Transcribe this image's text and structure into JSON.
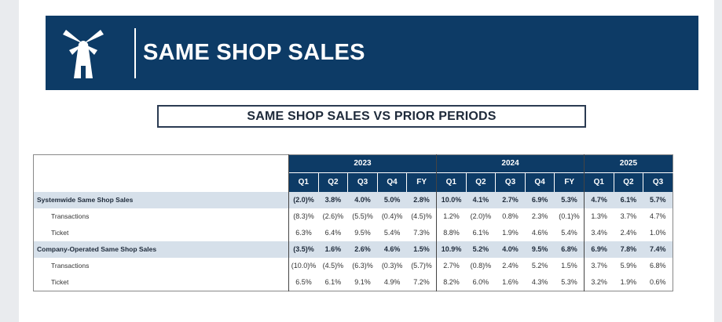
{
  "header": {
    "title": "SAME SHOP SALES",
    "logo_icon": "windmill-icon"
  },
  "subtitle": "SAME SHOP SALES VS PRIOR PERIODS",
  "colors": {
    "navy": "#0d3b66",
    "row_shade": "#d6e0ea"
  },
  "table": {
    "years": [
      {
        "label": "2023",
        "span": 5
      },
      {
        "label": "2024",
        "span": 5
      },
      {
        "label": "2025",
        "span": 3
      }
    ],
    "periods": [
      "Q1",
      "Q2",
      "Q3",
      "Q4",
      "FY",
      "Q1",
      "Q2",
      "Q3",
      "Q4",
      "FY",
      "Q1",
      "Q2",
      "Q3"
    ],
    "rows": [
      {
        "label": "Systemwide Same Shop Sales",
        "shaded": true,
        "values": [
          "(2.0)%",
          "3.8%",
          "4.0%",
          "5.0%",
          "2.8%",
          "10.0%",
          "4.1%",
          "2.7%",
          "6.9%",
          "5.3%",
          "4.7%",
          "6.1%",
          "5.7%"
        ]
      },
      {
        "label": "Transactions",
        "shaded": false,
        "values": [
          "(8.3)%",
          "(2.6)%",
          "(5.5)%",
          "(0.4)%",
          "(4.5)%",
          "1.2%",
          "(2.0)%",
          "0.8%",
          "2.3%",
          "(0.1)%",
          "1.3%",
          "3.7%",
          "4.7%"
        ]
      },
      {
        "label": "Ticket",
        "shaded": false,
        "values": [
          "6.3%",
          "6.4%",
          "9.5%",
          "5.4%",
          "7.3%",
          "8.8%",
          "6.1%",
          "1.9%",
          "4.6%",
          "5.4%",
          "3.4%",
          "2.4%",
          "1.0%"
        ]
      },
      {
        "label": "Company-Operated Same Shop Sales",
        "shaded": true,
        "values": [
          "(3.5)%",
          "1.6%",
          "2.6%",
          "4.6%",
          "1.5%",
          "10.9%",
          "5.2%",
          "4.0%",
          "9.5%",
          "6.8%",
          "6.9%",
          "7.8%",
          "7.4%"
        ]
      },
      {
        "label": "Transactions",
        "shaded": false,
        "values": [
          "(10.0)%",
          "(4.5)%",
          "(6.3)%",
          "(0.3)%",
          "(5.7)%",
          "2.7%",
          "(0.8)%",
          "2.4%",
          "5.2%",
          "1.5%",
          "3.7%",
          "5.9%",
          "6.8%"
        ]
      },
      {
        "label": "Ticket",
        "shaded": false,
        "values": [
          "6.5%",
          "6.1%",
          "9.1%",
          "4.9%",
          "7.2%",
          "8.2%",
          "6.0%",
          "1.6%",
          "4.3%",
          "5.3%",
          "3.2%",
          "1.9%",
          "0.6%"
        ]
      }
    ]
  }
}
